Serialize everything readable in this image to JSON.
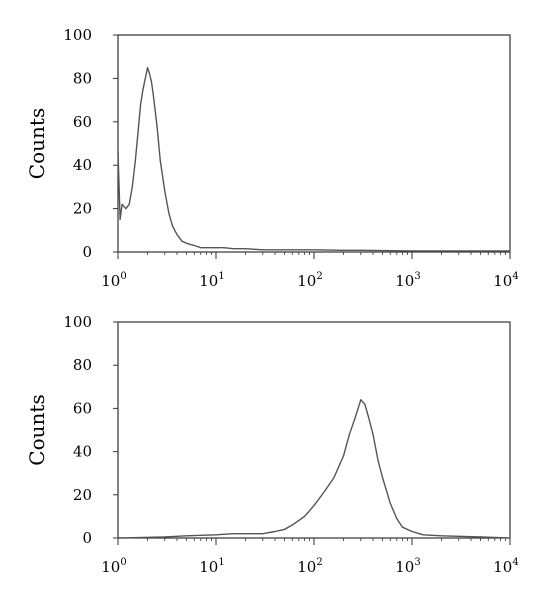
{
  "chart_data": [
    {
      "type": "line",
      "title": "",
      "xlabel": "",
      "ylabel": "Counts",
      "xscale": "log",
      "xlim": [
        1,
        10000
      ],
      "ylim": [
        0,
        100
      ],
      "x_ticks": [
        {
          "base": "10",
          "exp": "0"
        },
        {
          "base": "10",
          "exp": "1"
        },
        {
          "base": "10",
          "exp": "2"
        },
        {
          "base": "10",
          "exp": "3"
        },
        {
          "base": "10",
          "exp": "4"
        }
      ],
      "y_ticks": [
        "0",
        "20",
        "40",
        "60",
        "80",
        "100"
      ],
      "grid": false,
      "line_color": "#555555",
      "series": [
        {
          "x": [
            1,
            1.05,
            1.1,
            1.2,
            1.3,
            1.4,
            1.5,
            1.6,
            1.7,
            1.8,
            1.9,
            2.0,
            2.1,
            2.2,
            2.3,
            2.5,
            2.7,
            3.0,
            3.3,
            3.6,
            4,
            4.5,
            5,
            6,
            7,
            8,
            10,
            12,
            15,
            20,
            30,
            50,
            100,
            200,
            300,
            1000,
            10000
          ],
          "y": [
            46,
            15,
            22,
            20,
            22,
            30,
            42,
            55,
            68,
            75,
            80,
            85,
            82,
            78,
            72,
            58,
            42,
            28,
            18,
            12,
            8,
            5,
            4,
            3,
            2,
            2,
            2,
            2,
            1.5,
            1.5,
            1,
            1,
            1,
            0.8,
            0.8,
            0.5,
            0.5
          ]
        }
      ]
    },
    {
      "type": "line",
      "title": "",
      "xlabel": "",
      "ylabel": "Counts",
      "xscale": "log",
      "xlim": [
        1,
        10000
      ],
      "ylim": [
        0,
        100
      ],
      "x_ticks": [
        {
          "base": "10",
          "exp": "0"
        },
        {
          "base": "10",
          "exp": "1"
        },
        {
          "base": "10",
          "exp": "2"
        },
        {
          "base": "10",
          "exp": "3"
        },
        {
          "base": "10",
          "exp": "4"
        }
      ],
      "y_ticks": [
        "0",
        "20",
        "40",
        "60",
        "80",
        "100"
      ],
      "grid": false,
      "line_color": "#555555",
      "series": [
        {
          "x": [
            1,
            3,
            5,
            10,
            15,
            20,
            30,
            40,
            50,
            60,
            80,
            100,
            130,
            160,
            200,
            230,
            260,
            300,
            330,
            360,
            400,
            450,
            500,
            600,
            700,
            800,
            1000,
            1300,
            2000,
            5000,
            10000
          ],
          "y": [
            0,
            0.5,
            1,
            1.5,
            2,
            2,
            2,
            3,
            4,
            6,
            10,
            15,
            22,
            28,
            38,
            48,
            55,
            64,
            62,
            56,
            48,
            36,
            28,
            16,
            9,
            5,
            3,
            1.5,
            1,
            0.5,
            0
          ]
        }
      ]
    }
  ]
}
